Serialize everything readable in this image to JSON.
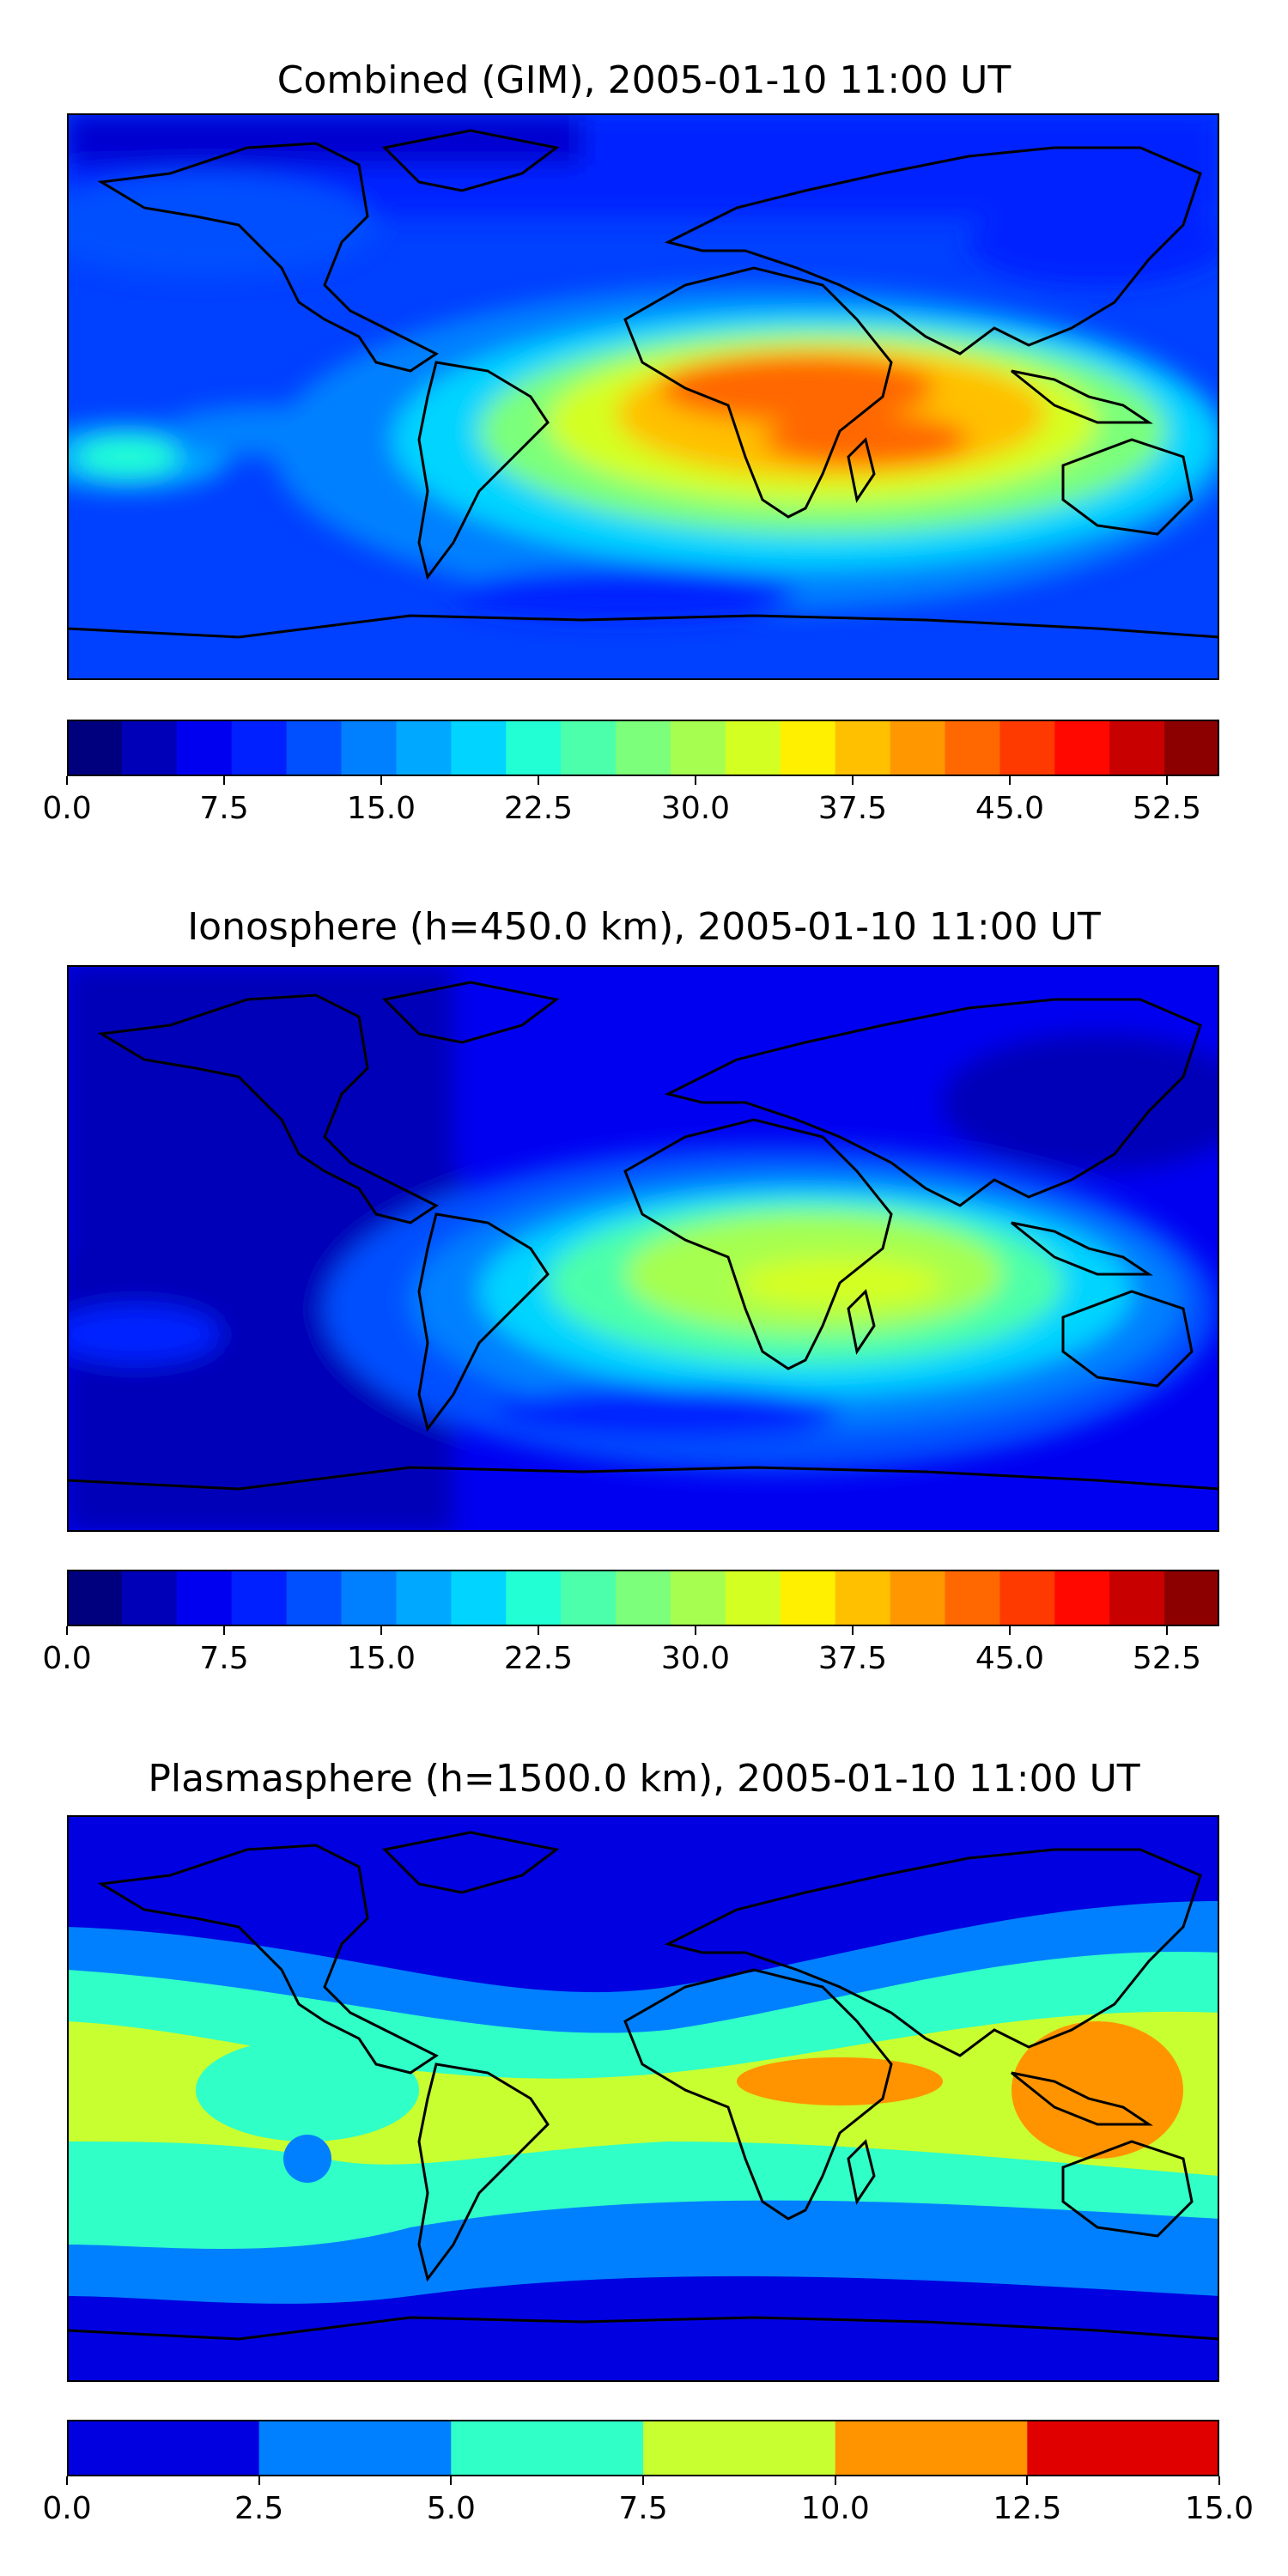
{
  "panels": [
    {
      "title": "Combined (GIM), 2005-01-10 11:00 UT",
      "colorbar": {
        "min": 0.0,
        "max": 55.0,
        "colors": [
          "#00007f",
          "#0000b8",
          "#0000f1",
          "#0020ff",
          "#0050ff",
          "#0080ff",
          "#00a8ff",
          "#00d4ff",
          "#22ffd4",
          "#4cffaa",
          "#7cff7a",
          "#a6ff50",
          "#d4ff22",
          "#fff000",
          "#ffc000",
          "#ff9800",
          "#ff6800",
          "#ff3a00",
          "#ff0800",
          "#c80000",
          "#8c0000"
        ],
        "tick_labels": [
          "0.0",
          "7.5",
          "15.0",
          "22.5",
          "30.0",
          "37.5",
          "45.0",
          "52.5"
        ]
      }
    },
    {
      "title": "Ionosphere  (h=450.0 km), 2005-01-10 11:00 UT",
      "colorbar": {
        "min": 0.0,
        "max": 55.0,
        "colors": [
          "#00007f",
          "#0000b8",
          "#0000f1",
          "#0020ff",
          "#0050ff",
          "#0080ff",
          "#00a8ff",
          "#00d4ff",
          "#22ffd4",
          "#4cffaa",
          "#7cff7a",
          "#a6ff50",
          "#d4ff22",
          "#fff000",
          "#ffc000",
          "#ff9800",
          "#ff6800",
          "#ff3a00",
          "#ff0800",
          "#c80000",
          "#8c0000"
        ],
        "tick_labels": [
          "0.0",
          "7.5",
          "15.0",
          "22.5",
          "30.0",
          "37.5",
          "45.0",
          "52.5"
        ]
      }
    },
    {
      "title": "Plasmasphere (h=1500.0 km), 2005-01-10 11:00 UT",
      "colorbar": {
        "min": 0.0,
        "max": 15.0,
        "colors": [
          "#0000e0",
          "#0080ff",
          "#30ffc8",
          "#c8ff30",
          "#ff9400",
          "#e00000"
        ],
        "tick_labels": [
          "0.0",
          "2.5",
          "5.0",
          "7.5",
          "10.0",
          "12.5",
          "15.0"
        ]
      }
    }
  ]
}
